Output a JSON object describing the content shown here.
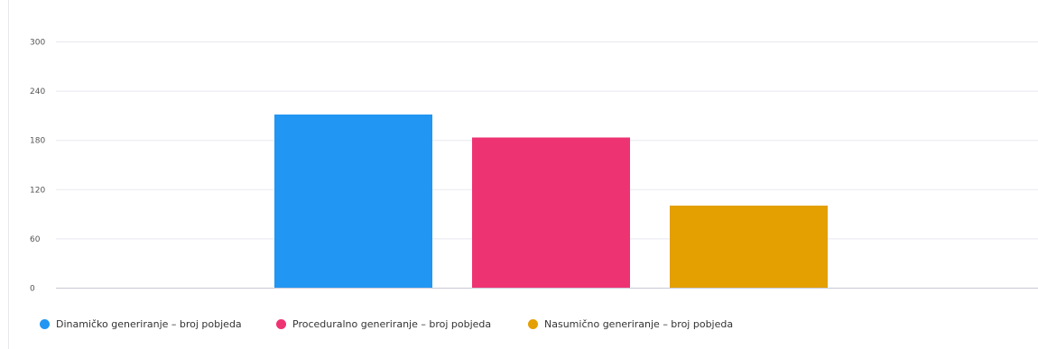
{
  "chart_data": {
    "type": "bar",
    "categories": [
      ""
    ],
    "series": [
      {
        "name": "Dinamičko generiranje – broj pobjeda",
        "values": [
          211
        ],
        "color": "#2196f3"
      },
      {
        "name": "Proceduralno generiranje – broj pobjeda",
        "values": [
          183
        ],
        "color": "#ee3373"
      },
      {
        "name": "Nasumično generiranje – broj pobjeda",
        "values": [
          100
        ],
        "color": "#e49f00"
      }
    ],
    "ylim": [
      0,
      300
    ],
    "yticks": [
      "0",
      "60",
      "120",
      "180",
      "240",
      "300"
    ],
    "grid": true,
    "legend": "bottom-left"
  }
}
